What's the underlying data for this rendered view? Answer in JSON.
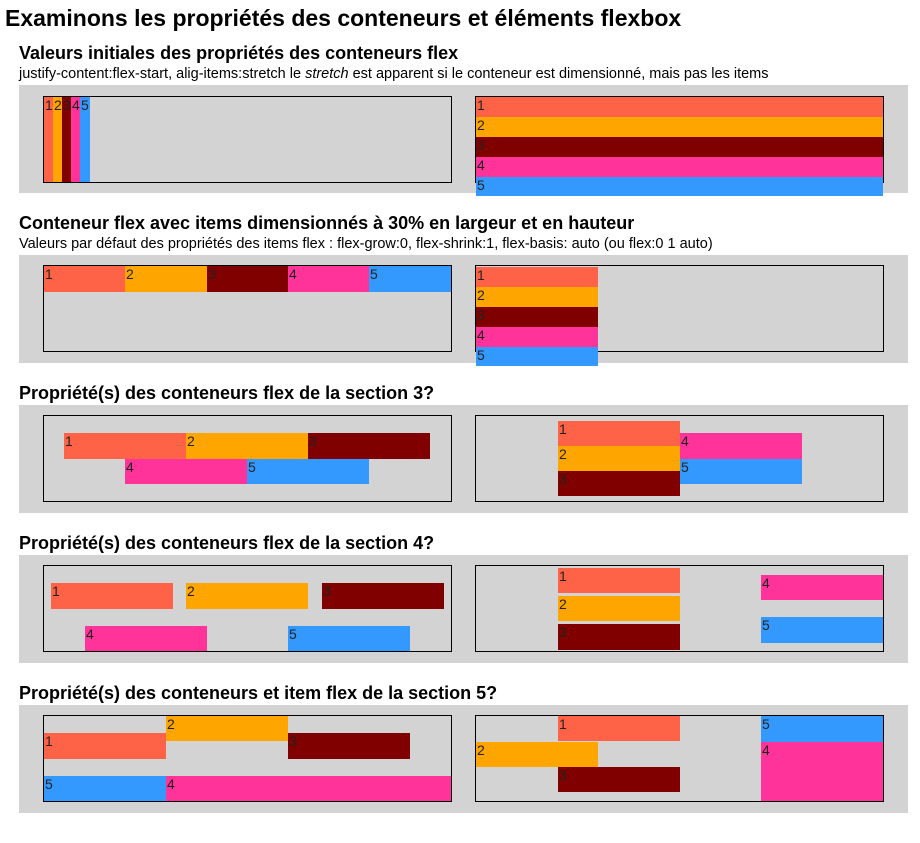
{
  "page": {
    "title": "Examinons les propriétés des conteneurs et éléments flexbox"
  },
  "sections": [
    {
      "title": "Valeurs initiales des propriétés des conteneurs flex",
      "subtitle_parts": [
        "justify-content:flex-start, alig-items:stretch le ",
        "stretch",
        " est apparent si le conteneur est dimensionné, mais pas les items"
      ]
    },
    {
      "title": "Conteneur flex avec items dimensionnés à 30% en largeur et en hauteur",
      "subtitle": "Valeurs par défaut des propriétés des items flex : flex-grow:0, flex-shrink:1, flex-basis: auto (ou flex:0 1 auto)"
    },
    {
      "title": "Propriété(s) des conteneurs flex de la section 3?"
    },
    {
      "title": "Propriété(s) des conteneurs flex de la section 4?"
    },
    {
      "title": "Propriété(s) des conteneurs et item flex de la section 5?"
    }
  ],
  "items": [
    "1",
    "2",
    "3",
    "4",
    "5"
  ],
  "colors": {
    "item1": "#ff6347",
    "item2": "#ffa500",
    "item3": "#800000",
    "item4": "#ff3399",
    "item5": "#3399ff",
    "panel_bg": "#d3d3d3"
  }
}
